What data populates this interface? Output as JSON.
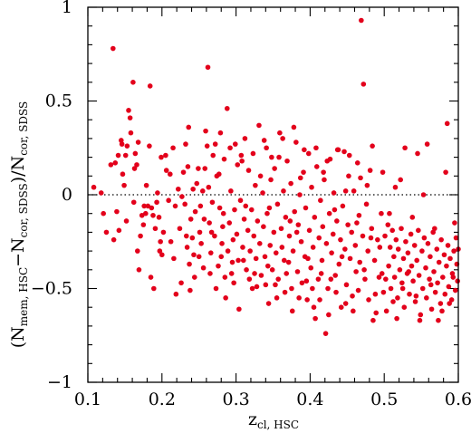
{
  "chart_data": {
    "type": "scatter",
    "title": "",
    "xlabel": {
      "main": "z",
      "sub": "cl, HSC"
    },
    "ylabel": {
      "open": "(",
      "n1": "N",
      "n1_sub": "mem, HSC",
      "minus": "−",
      "n2": "N",
      "n2_sub": "cor, SDSS",
      "close": ")/",
      "n3": "N",
      "n3_sub": "cor, SDSS"
    },
    "xlim": [
      0.1,
      0.6
    ],
    "ylim": [
      -1,
      1
    ],
    "xticks": [
      {
        "value": 0.1,
        "label": "0.1"
      },
      {
        "value": 0.2,
        "label": "0.2"
      },
      {
        "value": 0.3,
        "label": "0.3"
      },
      {
        "value": 0.4,
        "label": "0.4"
      },
      {
        "value": 0.5,
        "label": "0.5"
      },
      {
        "value": 0.6,
        "label": "0.6"
      }
    ],
    "yticks": [
      {
        "value": -1,
        "label": "−1"
      },
      {
        "value": -0.5,
        "label": "−0.5"
      },
      {
        "value": 0,
        "label": "0"
      },
      {
        "value": 0.5,
        "label": "0.5"
      },
      {
        "value": 1,
        "label": "1"
      }
    ],
    "reference_line": {
      "y": 0,
      "style": "dotted"
    },
    "grid": false,
    "marker_color": "#e3001b",
    "points": [
      [
        0.108,
        0.04
      ],
      [
        0.121,
        -0.1
      ],
      [
        0.125,
        -0.2
      ],
      [
        0.134,
        0.78
      ],
      [
        0.137,
        0.17
      ],
      [
        0.139,
        -0.09
      ],
      [
        0.141,
        0.21
      ],
      [
        0.142,
        -0.19
      ],
      [
        0.145,
        0.29
      ],
      [
        0.146,
        0.27
      ],
      [
        0.149,
        0.05
      ],
      [
        0.151,
        0.21
      ],
      [
        0.153,
        0.26
      ],
      [
        0.155,
        0.45
      ],
      [
        0.157,
        0.41
      ],
      [
        0.158,
        0.33
      ],
      [
        0.161,
        0.6
      ],
      [
        0.163,
        0.14
      ],
      [
        0.164,
        0.22
      ],
      [
        0.166,
        0.16
      ],
      [
        0.168,
        0.28
      ],
      [
        0.169,
        -0.4
      ],
      [
        0.171,
        -0.22
      ],
      [
        0.173,
        -0.11
      ],
      [
        0.175,
        -0.16
      ],
      [
        0.176,
        -0.06
      ],
      [
        0.178,
        -0.1
      ],
      [
        0.181,
        -0.06
      ],
      [
        0.183,
        0.26
      ],
      [
        0.184,
        0.58
      ],
      [
        0.186,
        -0.07
      ],
      [
        0.188,
        -0.11
      ],
      [
        0.189,
        -0.5
      ],
      [
        0.191,
        -0.18
      ],
      [
        0.193,
        -0.04
      ],
      [
        0.194,
        0.01
      ],
      [
        0.196,
        -0.12
      ],
      [
        0.198,
        -0.25
      ],
      [
        0.199,
        0.2
      ],
      [
        0.2,
        -0.32
      ],
      [
        0.205,
        0.21
      ],
      [
        0.211,
        0.11
      ],
      [
        0.216,
        -0.34
      ],
      [
        0.219,
        -0.53
      ],
      [
        0.224,
        -0.18
      ],
      [
        0.227,
        -0.01
      ],
      [
        0.229,
        0.12
      ],
      [
        0.231,
        -0.05
      ],
      [
        0.233,
        -0.22
      ],
      [
        0.235,
        0.15
      ],
      [
        0.237,
        -0.37
      ],
      [
        0.238,
        -0.51
      ],
      [
        0.241,
        -0.23
      ],
      [
        0.243,
        -0.32
      ],
      [
        0.245,
        -0.09
      ],
      [
        0.247,
        0.06
      ],
      [
        0.249,
        0.14
      ],
      [
        0.251,
        -0.2
      ],
      [
        0.253,
        -0.26
      ],
      [
        0.255,
        0.02
      ],
      [
        0.257,
        -0.13
      ],
      [
        0.259,
        0.34
      ],
      [
        0.261,
        0.26
      ],
      [
        0.262,
        0.68
      ],
      [
        0.264,
        -0.15
      ],
      [
        0.266,
        -0.31
      ],
      [
        0.268,
        -0.04
      ],
      [
        0.269,
        0.21
      ],
      [
        0.271,
        -0.22
      ],
      [
        0.273,
        -0.5
      ],
      [
        0.274,
        0.1
      ],
      [
        0.276,
        -0.38
      ],
      [
        0.278,
        -0.07
      ],
      [
        0.279,
        0.33
      ],
      [
        0.281,
        -0.26
      ],
      [
        0.283,
        -0.1
      ],
      [
        0.284,
        0.19
      ],
      [
        0.286,
        -0.55
      ],
      [
        0.288,
        0.46
      ],
      [
        0.289,
        -0.3
      ],
      [
        0.291,
        -0.15
      ],
      [
        0.293,
        0.02
      ],
      [
        0.294,
        -0.42
      ],
      [
        0.296,
        -0.24
      ],
      [
        0.298,
        -0.08
      ],
      [
        0.299,
        0.27
      ],
      [
        0.301,
        -0.21
      ],
      [
        0.303,
        -0.35
      ],
      [
        0.304,
        -0.61
      ],
      [
        0.306,
        -0.03
      ],
      [
        0.307,
        0.21
      ],
      [
        0.309,
        -0.28
      ],
      [
        0.311,
        -0.13
      ],
      [
        0.312,
        0.3
      ],
      [
        0.314,
        -0.4
      ],
      [
        0.316,
        -0.19
      ],
      [
        0.317,
        0.13
      ],
      [
        0.319,
        -0.3
      ],
      [
        0.321,
        -0.08
      ],
      [
        0.322,
        -0.5
      ],
      [
        0.324,
        -0.22
      ],
      [
        0.326,
        0.05
      ],
      [
        0.327,
        -0.34
      ],
      [
        0.329,
        -0.14
      ],
      [
        0.331,
        0.37
      ],
      [
        0.332,
        -0.26
      ],
      [
        0.334,
        -0.43
      ],
      [
        0.336,
        0.01
      ],
      [
        0.337,
        -0.17
      ],
      [
        0.339,
        -0.33
      ],
      [
        0.341,
        0.25
      ],
      [
        0.342,
        -0.1
      ],
      [
        0.344,
        -0.58
      ],
      [
        0.346,
        -0.27
      ],
      [
        0.347,
        0.08
      ],
      [
        0.349,
        -0.4
      ],
      [
        0.351,
        -0.2
      ],
      [
        0.352,
        0.14
      ],
      [
        0.354,
        -0.31
      ],
      [
        0.356,
        -0.05
      ],
      [
        0.357,
        -0.45
      ],
      [
        0.359,
        0.33
      ],
      [
        0.361,
        -0.18
      ],
      [
        0.362,
        -0.28
      ],
      [
        0.364,
        0.02
      ],
      [
        0.366,
        -0.52
      ],
      [
        0.367,
        -0.12
      ],
      [
        0.369,
        0.18
      ],
      [
        0.371,
        -0.36
      ],
      [
        0.372,
        -0.22
      ],
      [
        0.374,
        0.06
      ],
      [
        0.376,
        -0.62
      ],
      [
        0.377,
        -0.3
      ],
      [
        0.379,
        -0.09
      ],
      [
        0.381,
        0.28
      ],
      [
        0.383,
        -0.41
      ],
      [
        0.384,
        -0.16
      ],
      [
        0.386,
        0.0
      ],
      [
        0.388,
        -0.25
      ],
      [
        0.389,
        -0.47
      ],
      [
        0.391,
        0.12
      ],
      [
        0.393,
        -0.33
      ],
      [
        0.394,
        -0.07
      ],
      [
        0.396,
        -0.56
      ],
      [
        0.398,
        0.22
      ],
      [
        0.399,
        -0.19
      ],
      [
        0.401,
        -0.39
      ],
      [
        0.402,
        0.04
      ],
      [
        0.404,
        -0.28
      ],
      [
        0.406,
        -0.12
      ],
      [
        0.407,
        -0.66
      ],
      [
        0.409,
        0.15
      ],
      [
        0.411,
        -0.45
      ],
      [
        0.412,
        -0.23
      ],
      [
        0.414,
        -0.03
      ],
      [
        0.416,
        -0.35
      ],
      [
        0.417,
        -0.17
      ],
      [
        0.419,
        0.08
      ],
      [
        0.421,
        -0.74
      ],
      [
        0.422,
        -0.26
      ],
      [
        0.424,
        -0.5
      ],
      [
        0.426,
        -0.1
      ],
      [
        0.427,
        0.19
      ],
      [
        0.429,
        -0.31
      ],
      [
        0.431,
        -0.21
      ],
      [
        0.432,
        0.01
      ],
      [
        0.434,
        -0.43
      ],
      [
        0.436,
        -0.14
      ],
      [
        0.437,
        0.24
      ],
      [
        0.439,
        -0.37
      ],
      [
        0.441,
        -0.24
      ],
      [
        0.442,
        -0.6
      ],
      [
        0.444,
        -0.06
      ],
      [
        0.446,
        0.23
      ],
      [
        0.447,
        -0.29
      ],
      [
        0.449,
        -0.48
      ],
      [
        0.451,
        -0.16
      ],
      [
        0.452,
        0.1
      ],
      [
        0.454,
        -0.34
      ],
      [
        0.456,
        -0.2
      ],
      [
        0.457,
        -0.54
      ],
      [
        0.459,
        0.02
      ],
      [
        0.461,
        -0.27
      ],
      [
        0.462,
        -0.41
      ],
      [
        0.464,
        0.17
      ],
      [
        0.466,
        -0.11
      ],
      [
        0.467,
        -0.36
      ],
      [
        0.469,
        0.93
      ],
      [
        0.471,
        -0.22
      ],
      [
        0.472,
        0.59
      ],
      [
        0.474,
        -0.45
      ],
      [
        0.476,
        -0.05
      ],
      [
        0.478,
        -0.3
      ],
      [
        0.479,
        -0.56
      ],
      [
        0.481,
        0.13
      ],
      [
        0.483,
        -0.18
      ],
      [
        0.485,
        -0.67
      ],
      [
        0.487,
        -0.35
      ],
      [
        0.489,
        -0.63
      ],
      [
        0.491,
        -0.24
      ],
      [
        0.493,
        -0.44
      ],
      [
        0.496,
        -0.1
      ],
      [
        0.499,
        -0.52
      ],
      [
        0.501,
        -0.22
      ],
      [
        0.503,
        -0.62
      ],
      [
        0.505,
        -0.16
      ],
      [
        0.506,
        -0.38
      ],
      [
        0.508,
        -0.28
      ],
      [
        0.509,
        -0.5
      ],
      [
        0.511,
        -0.19
      ],
      [
        0.513,
        -0.33
      ],
      [
        0.514,
        -0.44
      ],
      [
        0.516,
        -0.24
      ],
      [
        0.518,
        -0.55
      ],
      [
        0.519,
        -0.29
      ],
      [
        0.521,
        -0.4
      ],
      [
        0.523,
        -0.18
      ],
      [
        0.524,
        -0.47
      ],
      [
        0.526,
        -0.34
      ],
      [
        0.527,
        -0.6
      ],
      [
        0.529,
        -0.25
      ],
      [
        0.531,
        -0.42
      ],
      [
        0.532,
        -0.31
      ],
      [
        0.534,
        -0.53
      ],
      [
        0.536,
        -0.21
      ],
      [
        0.537,
        -0.38
      ],
      [
        0.539,
        -0.46
      ],
      [
        0.541,
        -0.27
      ],
      [
        0.542,
        -0.57
      ],
      [
        0.544,
        -0.35
      ],
      [
        0.546,
        -0.19
      ],
      [
        0.547,
        -0.43
      ],
      [
        0.549,
        -0.64
      ],
      [
        0.551,
        -0.3
      ],
      [
        0.552,
        -0.5
      ],
      [
        0.554,
        -0.23
      ],
      [
        0.556,
        -0.39
      ],
      [
        0.557,
        -0.55
      ],
      [
        0.559,
        -0.26
      ],
      [
        0.561,
        -0.45
      ],
      [
        0.562,
        -0.33
      ],
      [
        0.564,
        -0.61
      ],
      [
        0.566,
        -0.2
      ],
      [
        0.567,
        -0.41
      ],
      [
        0.569,
        -0.52
      ],
      [
        0.571,
        -0.29
      ],
      [
        0.572,
        -0.47
      ],
      [
        0.574,
        -0.36
      ],
      [
        0.576,
        -0.58
      ],
      [
        0.577,
        -0.24
      ],
      [
        0.579,
        -0.44
      ],
      [
        0.581,
        -0.32
      ],
      [
        0.582,
        -0.53
      ],
      [
        0.584,
        -0.38
      ],
      [
        0.586,
        -0.27
      ],
      [
        0.587,
        -0.49
      ],
      [
        0.589,
        -0.34
      ],
      [
        0.591,
        -0.56
      ],
      [
        0.592,
        -0.42
      ],
      [
        0.594,
        -0.3
      ],
      [
        0.596,
        -0.51
      ],
      [
        0.598,
        -0.37
      ],
      [
        0.599,
        -0.46
      ],
      [
        0.215,
        0.25
      ],
      [
        0.222,
        0.03
      ],
      [
        0.236,
        0.36
      ],
      [
        0.244,
        -0.44
      ],
      [
        0.252,
        -0.06
      ],
      [
        0.263,
        0.04
      ],
      [
        0.277,
        0.11
      ],
      [
        0.285,
        -0.44
      ],
      [
        0.302,
        0.16
      ],
      [
        0.318,
        -0.45
      ],
      [
        0.333,
        0.1
      ],
      [
        0.345,
        -0.07
      ],
      [
        0.358,
        0.2
      ],
      [
        0.373,
        -0.14
      ],
      [
        0.387,
        0.09
      ],
      [
        0.403,
        -0.5
      ],
      [
        0.418,
        0.12
      ],
      [
        0.433,
        -0.08
      ],
      [
        0.448,
        0.02
      ],
      [
        0.463,
        -0.15
      ],
      [
        0.477,
        0.05
      ],
      [
        0.494,
        -0.28
      ],
      [
        0.507,
        -0.1
      ],
      [
        0.522,
        0.08
      ],
      [
        0.538,
        -0.12
      ],
      [
        0.553,
        0.0
      ],
      [
        0.568,
        -0.18
      ],
      [
        0.583,
        0.12
      ],
      [
        0.597,
        -0.23
      ],
      [
        0.585,
        0.38
      ],
      [
        0.558,
        0.27
      ],
      [
        0.545,
        0.22
      ],
      [
        0.528,
        0.25
      ],
      [
        0.515,
        0.04
      ],
      [
        0.498,
        0.12
      ],
      [
        0.484,
        0.26
      ],
      [
        0.468,
        0.09
      ],
      [
        0.453,
        0.21
      ],
      [
        0.438,
        0.24
      ],
      [
        0.423,
        0.18
      ],
      [
        0.408,
        0.25
      ],
      [
        0.392,
        0.24
      ],
      [
        0.378,
        0.36
      ],
      [
        0.363,
        0.3
      ],
      [
        0.348,
        0.2
      ],
      [
        0.338,
        0.29
      ],
      [
        0.323,
        0.22
      ],
      [
        0.308,
        0.18
      ],
      [
        0.292,
        0.25
      ],
      [
        0.272,
        0.27
      ],
      [
        0.258,
        0.14
      ],
      [
        0.242,
        0.03
      ],
      [
        0.232,
        0.27
      ],
      [
        0.218,
        -0.06
      ],
      [
        0.206,
        0.13
      ],
      [
        0.179,
        0.05
      ],
      [
        0.162,
        -0.04
      ],
      [
        0.147,
        0.11
      ],
      [
        0.131,
        0.16
      ],
      [
        0.118,
        0.01
      ],
      [
        0.135,
        -0.24
      ],
      [
        0.152,
        -0.14
      ],
      [
        0.167,
        -0.3
      ],
      [
        0.185,
        -0.44
      ],
      [
        0.197,
        -0.3
      ],
      [
        0.209,
        -0.03
      ],
      [
        0.226,
        -0.47
      ],
      [
        0.239,
        -0.13
      ],
      [
        0.256,
        -0.39
      ],
      [
        0.267,
        -0.2
      ],
      [
        0.282,
        -0.17
      ],
      [
        0.297,
        -0.47
      ],
      [
        0.313,
        -0.06
      ],
      [
        0.328,
        -0.49
      ],
      [
        0.343,
        -0.38
      ],
      [
        0.353,
        -0.48
      ],
      [
        0.368,
        -0.42
      ],
      [
        0.382,
        -0.2
      ],
      [
        0.397,
        -0.34
      ],
      [
        0.413,
        -0.56
      ],
      [
        0.428,
        -0.45
      ],
      [
        0.443,
        -0.33
      ],
      [
        0.458,
        -0.62
      ],
      [
        0.473,
        -0.4
      ],
      [
        0.488,
        -0.53
      ],
      [
        0.502,
        -0.45
      ],
      [
        0.517,
        -0.66
      ],
      [
        0.533,
        -0.41
      ],
      [
        0.548,
        -0.67
      ],
      [
        0.563,
        -0.48
      ],
      [
        0.578,
        -0.62
      ],
      [
        0.593,
        -0.44
      ],
      [
        0.6,
        -0.29
      ],
      [
        0.595,
        -0.15
      ],
      [
        0.588,
        -0.58
      ],
      [
        0.573,
        -0.67
      ],
      [
        0.543,
        -0.54
      ],
      [
        0.525,
        -0.5
      ],
      [
        0.512,
        -0.57
      ],
      [
        0.497,
        -0.42
      ],
      [
        0.482,
        -0.23
      ],
      [
        0.465,
        -0.51
      ],
      [
        0.448,
        -0.58
      ],
      [
        0.435,
        -0.52
      ],
      [
        0.425,
        -0.64
      ],
      [
        0.415,
        -0.42
      ],
      [
        0.405,
        -0.6
      ],
      [
        0.395,
        -0.46
      ],
      [
        0.385,
        -0.55
      ],
      [
        0.375,
        -0.5
      ],
      [
        0.365,
        -0.35
      ],
      [
        0.355,
        -0.55
      ],
      [
        0.34,
        -0.48
      ],
      [
        0.325,
        -0.42
      ],
      [
        0.31,
        -0.35
      ],
      [
        0.295,
        -0.36
      ],
      [
        0.28,
        -0.33
      ],
      [
        0.265,
        -0.42
      ],
      [
        0.25,
        -0.33
      ],
      [
        0.234,
        -0.28
      ],
      [
        0.212,
        -0.25
      ],
      [
        0.202,
        -0.2
      ]
    ]
  }
}
